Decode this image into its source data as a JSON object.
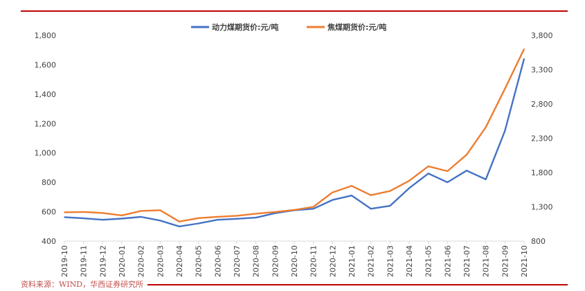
{
  "chart_data": {
    "type": "line",
    "title": "",
    "legend_position": "top",
    "grid": false,
    "x_categories": [
      "2019-10",
      "2019-11",
      "2019-12",
      "2020-01",
      "2020-02",
      "2020-03",
      "2020-04",
      "2020-05",
      "2020-06",
      "2020-07",
      "2020-08",
      "2020-09",
      "2020-10",
      "2020-11",
      "2020-12",
      "2021-01",
      "2021-02",
      "2021-03",
      "2021-04",
      "2021-05",
      "2021-06",
      "2021-07",
      "2021-08",
      "2021-09",
      "2021-10"
    ],
    "y_left": {
      "range": [
        400,
        1800
      ],
      "ticks": [
        "400",
        "600",
        "800",
        "1,000",
        "1,200",
        "1,400",
        "1,600",
        "1,800"
      ]
    },
    "y_right": {
      "range": [
        800,
        3800
      ],
      "ticks": [
        "800",
        "1,300",
        "1,800",
        "2,300",
        "2,800",
        "3,300",
        "3,800"
      ]
    },
    "colors": {
      "thermal": "#4472c4",
      "coking": "#ed7d31",
      "rule": "#c00000"
    },
    "series": [
      {
        "name": "动力煤期货价:元/吨",
        "axis": "left",
        "points": [
          [
            "2019-10",
            563
          ],
          [
            "2019-11",
            555
          ],
          [
            "2019-12",
            545
          ],
          [
            "2020-01",
            553
          ],
          [
            "2020-02",
            565
          ],
          [
            "2020-03",
            540
          ],
          [
            "2020-04",
            500
          ],
          [
            "2020-05",
            520
          ],
          [
            "2020-06",
            545
          ],
          [
            "2020-07",
            552
          ],
          [
            "2020-08",
            560
          ],
          [
            "2020-09",
            590
          ],
          [
            "2020-10",
            610
          ],
          [
            "2020-11",
            620
          ],
          [
            "2020-12",
            680
          ],
          [
            "2021-01",
            710
          ],
          [
            "2021-02",
            620
          ],
          [
            "2021-03",
            640
          ],
          [
            "2021-04",
            760
          ],
          [
            "2021-05",
            860
          ],
          [
            "2021-06",
            800
          ],
          [
            "2021-07",
            880
          ],
          [
            "2021-08",
            820
          ],
          [
            "2021-09",
            1150
          ],
          [
            "2021-10",
            1640
          ]
        ]
      },
      {
        "name": "焦煤期货价:元/吨",
        "axis": "right",
        "points": [
          [
            "2019-10",
            1220
          ],
          [
            "2019-11",
            1225
          ],
          [
            "2019-12",
            1210
          ],
          [
            "2020-01",
            1175
          ],
          [
            "2020-02",
            1240
          ],
          [
            "2020-03",
            1250
          ],
          [
            "2020-04",
            1085
          ],
          [
            "2020-05",
            1135
          ],
          [
            "2020-06",
            1155
          ],
          [
            "2020-07",
            1170
          ],
          [
            "2020-08",
            1200
          ],
          [
            "2020-09",
            1225
          ],
          [
            "2020-10",
            1255
          ],
          [
            "2020-11",
            1300
          ],
          [
            "2020-12",
            1510
          ],
          [
            "2021-01",
            1605
          ],
          [
            "2021-02",
            1470
          ],
          [
            "2021-03",
            1530
          ],
          [
            "2021-04",
            1680
          ],
          [
            "2021-05",
            1890
          ],
          [
            "2021-06",
            1820
          ],
          [
            "2021-07",
            2060
          ],
          [
            "2021-08",
            2460
          ],
          [
            "2021-09",
            3020
          ],
          [
            "2021-10",
            3600
          ]
        ]
      }
    ]
  },
  "source_note": "资料来源：WIND，华西证券研究所"
}
